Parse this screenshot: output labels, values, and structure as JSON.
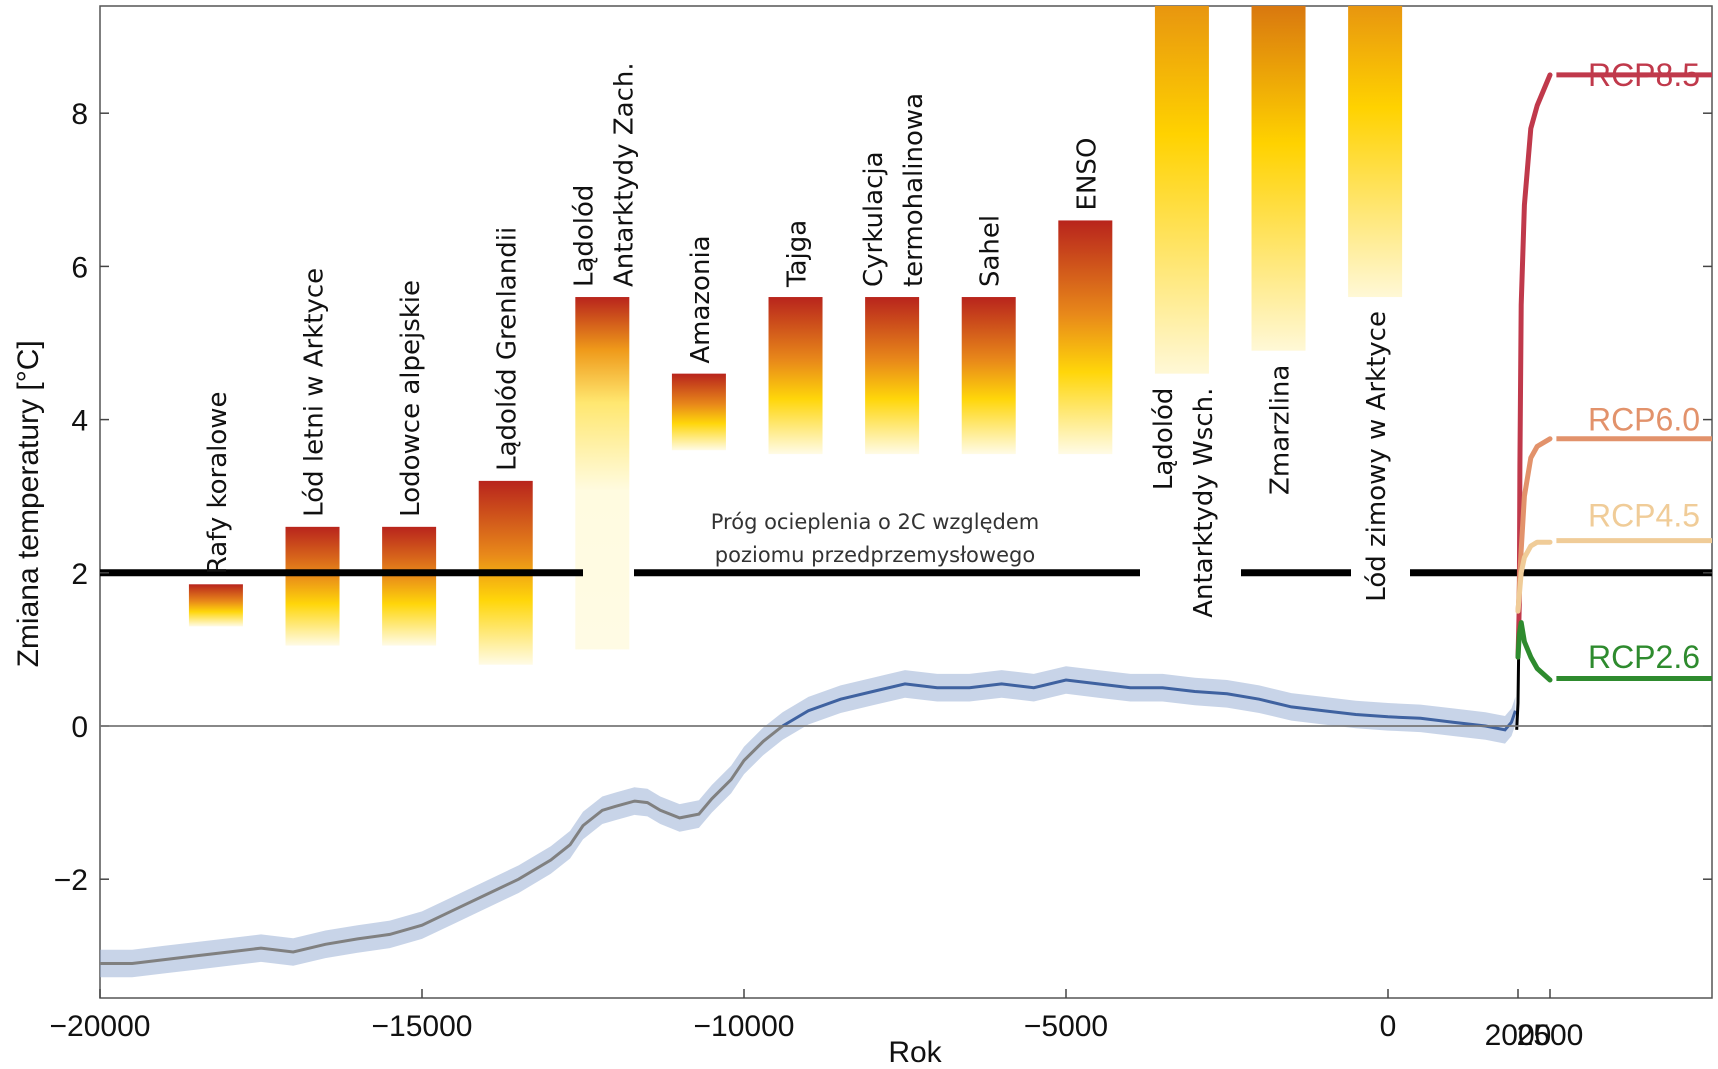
{
  "chart_data": {
    "type": "line",
    "xlabel": "Rok",
    "ylabel": "Zmiana temperatury [°C]",
    "ylim": [
      -3.5,
      9.4
    ],
    "x_ticks": [
      {
        "value": -20000,
        "label": "−20000"
      },
      {
        "value": -15000,
        "label": "−15000"
      },
      {
        "value": -10000,
        "label": "−10000"
      },
      {
        "value": -5000,
        "label": "−5000"
      },
      {
        "value": 0,
        "label": "0"
      },
      {
        "value": 2000,
        "label": "2000"
      },
      {
        "value": 2500,
        "label": "2500"
      }
    ],
    "y_ticks": [
      {
        "value": -2,
        "label": "−2"
      },
      {
        "value": 0,
        "label": "0"
      },
      {
        "value": 2,
        "label": "2"
      },
      {
        "value": 4,
        "label": "4"
      },
      {
        "value": 6,
        "label": "6"
      },
      {
        "value": 8,
        "label": "8"
      }
    ],
    "threshold": {
      "value": 2,
      "label_lines": [
        "Próg ocieplenia o 2C względem",
        "poziomu przedprzemysłowego"
      ]
    },
    "historical": {
      "x": [
        -20000,
        -19500,
        -19000,
        -18500,
        -18000,
        -17500,
        -17000,
        -16500,
        -16000,
        -15500,
        -15000,
        -14500,
        -14000,
        -13500,
        -13000,
        -12700,
        -12500,
        -12200,
        -12000,
        -11700,
        -11500,
        -11300,
        -11000,
        -10700,
        -10500,
        -10200,
        -10000,
        -9700,
        -9400,
        -9000,
        -8500,
        -8000,
        -7500,
        -7000,
        -6500,
        -6000,
        -5500,
        -5000,
        -4500,
        -4000,
        -3500,
        -3000,
        -2500,
        -2000,
        -1500,
        -1000,
        -500,
        0,
        500,
        1000,
        1500,
        1800,
        1900,
        1960
      ],
      "y": [
        -3.1,
        -3.1,
        -3.05,
        -3.0,
        -2.95,
        -2.9,
        -2.95,
        -2.85,
        -2.78,
        -2.72,
        -2.6,
        -2.4,
        -2.2,
        -2.0,
        -1.75,
        -1.55,
        -1.3,
        -1.1,
        -1.05,
        -0.98,
        -1.0,
        -1.1,
        -1.2,
        -1.15,
        -0.95,
        -0.7,
        -0.45,
        -0.2,
        0.0,
        0.2,
        0.35,
        0.45,
        0.55,
        0.5,
        0.5,
        0.55,
        0.5,
        0.6,
        0.55,
        0.5,
        0.5,
        0.45,
        0.42,
        0.35,
        0.25,
        0.2,
        0.15,
        0.12,
        0.1,
        0.05,
        0.0,
        -0.05,
        0.05,
        0.2
      ],
      "band": 0.18
    },
    "tipping_elements": [
      {
        "label_lines": [
          "Rafy koralowe"
        ],
        "x": -18200,
        "low": 1.3,
        "high": 1.85,
        "label_pos": "above"
      },
      {
        "label_lines": [
          "Lód letni w Arktyce"
        ],
        "x": -16700,
        "low": 1.05,
        "high": 2.6,
        "label_pos": "above"
      },
      {
        "label_lines": [
          "Lodowce alpejskie"
        ],
        "x": -15200,
        "low": 1.05,
        "high": 2.6,
        "label_pos": "above"
      },
      {
        "label_lines": [
          "Lądolód Grenlandii"
        ],
        "x": -13700,
        "low": 0.8,
        "high": 3.2,
        "label_pos": "above"
      },
      {
        "label_lines": [
          "Lądolód",
          "Antarktydy Zach."
        ],
        "x": -12200,
        "low": 1.0,
        "high": 5.6,
        "label_pos": "above"
      },
      {
        "label_lines": [
          "Amazonia"
        ],
        "x": -10700,
        "low": 3.6,
        "high": 4.6,
        "label_pos": "above"
      },
      {
        "label_lines": [
          "Tajga"
        ],
        "x": -9200,
        "low": 3.55,
        "high": 5.6,
        "label_pos": "above"
      },
      {
        "label_lines": [
          "Cyrkulacja",
          "termohalinowa"
        ],
        "x": -7700,
        "low": 3.55,
        "high": 5.6,
        "label_pos": "above"
      },
      {
        "label_lines": [
          "Sahel"
        ],
        "x": -6200,
        "low": 3.55,
        "high": 5.6,
        "label_pos": "above"
      },
      {
        "label_lines": [
          "ENSO"
        ],
        "x": -4700,
        "low": 3.55,
        "high": 6.6,
        "label_pos": "above"
      },
      {
        "label_lines": [
          "Lądolód",
          "Antarktydy Wsch."
        ],
        "x": -3200,
        "low": 4.6,
        "high": 9.4,
        "label_pos": "below"
      },
      {
        "label_lines": [
          "Zmarzlina"
        ],
        "x": -1700,
        "low": 4.9,
        "high": 9.4,
        "label_pos": "below"
      },
      {
        "label_lines": [
          "Lód zimowy w Arktyce"
        ],
        "x": -200,
        "low": 5.6,
        "high": 9.4,
        "label_pos": "below"
      }
    ],
    "series": [
      {
        "name": "RCP8.5",
        "color": "#c0394b",
        "points": [
          [
            2000,
            0.9
          ],
          [
            2010,
            1.2
          ],
          [
            2020,
            1.6
          ],
          [
            2030,
            3.4
          ],
          [
            2050,
            5.5
          ],
          [
            2100,
            6.8
          ],
          [
            2200,
            7.8
          ],
          [
            2300,
            8.1
          ],
          [
            2500,
            8.5
          ]
        ],
        "end_value": 8.5
      },
      {
        "name": "RCP6.0",
        "color": "#e2926b",
        "points": [
          [
            2000,
            1.5
          ],
          [
            2010,
            1.6
          ],
          [
            2030,
            2.0
          ],
          [
            2050,
            2.3
          ],
          [
            2100,
            3.0
          ],
          [
            2200,
            3.5
          ],
          [
            2300,
            3.65
          ],
          [
            2500,
            3.75
          ]
        ],
        "end_value": 3.75
      },
      {
        "name": "RCP4.5",
        "color": "#f0cc98",
        "points": [
          [
            2000,
            1.5
          ],
          [
            2010,
            1.6
          ],
          [
            2030,
            1.8
          ],
          [
            2050,
            2.0
          ],
          [
            2100,
            2.2
          ],
          [
            2200,
            2.35
          ],
          [
            2300,
            2.4
          ],
          [
            2500,
            2.4
          ]
        ],
        "end_value": 2.42
      },
      {
        "name": "RCP2.6",
        "color": "#2e8b2e",
        "points": [
          [
            2000,
            0.9
          ],
          [
            2020,
            1.2
          ],
          [
            2050,
            1.35
          ],
          [
            2100,
            1.1
          ],
          [
            2200,
            0.9
          ],
          [
            2300,
            0.75
          ],
          [
            2500,
            0.6
          ]
        ],
        "end_value": 0.62
      }
    ]
  }
}
